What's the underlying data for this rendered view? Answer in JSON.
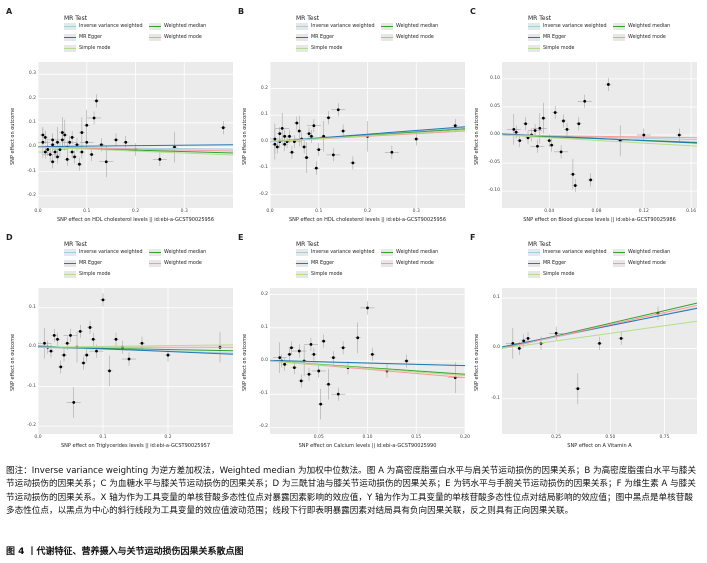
{
  "legend": {
    "title": "MR Test",
    "items": [
      {
        "label": "Inverse variance weighted",
        "color": "#a6cee3"
      },
      {
        "label": "Weighted median",
        "color": "#33a02c"
      },
      {
        "label": "MR Egger",
        "color": "#1f78b4"
      },
      {
        "label": "Weighted mode",
        "color": "#fb9a99"
      },
      {
        "label": "Simple mode",
        "color": "#b2df8a"
      }
    ]
  },
  "ylabel": "SNP effect on outcome",
  "chart_data": [
    {
      "type": "scatter",
      "panel": "A",
      "xlabel": "SNP effect on HDL cholesterol levels || id:ebi-a-GCST90025956",
      "xlim": [
        0,
        0.4
      ],
      "ylim": [
        -0.25,
        0.35
      ],
      "xticks": [
        {
          "v": 0.0,
          "t": "0.0"
        },
        {
          "v": 0.1,
          "t": "0.1"
        },
        {
          "v": 0.2,
          "t": "0.2"
        },
        {
          "v": 0.3,
          "t": "0.3"
        }
      ],
      "yticks": [
        {
          "v": -0.2,
          "t": "-0.2"
        },
        {
          "v": -0.1,
          "t": "-0.1"
        },
        {
          "v": 0.0,
          "t": "0.0"
        },
        {
          "v": 0.1,
          "t": "0.1"
        },
        {
          "v": 0.2,
          "t": "0.2"
        },
        {
          "v": 0.3,
          "t": "0.3"
        }
      ],
      "points": [
        [
          0.01,
          0.02
        ],
        [
          0.02,
          -0.01
        ],
        [
          0.015,
          0.04
        ],
        [
          0.03,
          0.01
        ],
        [
          0.025,
          -0.03
        ],
        [
          0.04,
          0.02
        ],
        [
          0.035,
          -0.02
        ],
        [
          0.05,
          0.03
        ],
        [
          0.045,
          -0.01
        ],
        [
          0.06,
          0.0
        ],
        [
          0.055,
          0.05
        ],
        [
          0.07,
          -0.02
        ],
        [
          0.065,
          0.02
        ],
        [
          0.08,
          0.01
        ],
        [
          0.075,
          -0.04
        ],
        [
          0.09,
          0.06
        ],
        [
          0.1,
          0.02
        ],
        [
          0.11,
          -0.03
        ],
        [
          0.12,
          0.19
        ],
        [
          0.13,
          0.01
        ],
        [
          0.14,
          -0.06
        ],
        [
          0.16,
          0.03
        ],
        [
          0.18,
          0.02
        ],
        [
          0.2,
          -0.01
        ],
        [
          0.25,
          -0.05
        ],
        [
          0.28,
          0.0
        ],
        [
          0.38,
          0.08
        ],
        [
          0.02,
          0.0
        ],
        [
          0.03,
          0.03
        ],
        [
          0.04,
          -0.04
        ],
        [
          0.05,
          0.06
        ],
        [
          0.06,
          -0.05
        ],
        [
          0.015,
          -0.02
        ],
        [
          0.07,
          0.04
        ],
        [
          0.085,
          -0.07
        ],
        [
          0.1,
          0.09
        ],
        [
          0.115,
          0.12
        ],
        [
          0.09,
          -0.02
        ],
        [
          0.03,
          -0.06
        ],
        [
          0.01,
          0.05
        ]
      ],
      "lines": [
        {
          "name": "Inverse variance weighted",
          "slope": -0.02,
          "intercept": 0.0
        },
        {
          "name": "Weighted median",
          "slope": -0.06,
          "intercept": 0.0
        },
        {
          "name": "MR Egger",
          "slope": 0.02,
          "intercept": 0.002
        },
        {
          "name": "Weighted mode",
          "slope": -0.04,
          "intercept": 0.0
        },
        {
          "name": "Simple mode",
          "slope": -0.08,
          "intercept": 0.0
        }
      ]
    },
    {
      "type": "scatter",
      "panel": "B",
      "xlabel": "SNP effect on HDL cholesterol levels || id:ebi-a-GCST90025956",
      "xlim": [
        0,
        0.4
      ],
      "ylim": [
        -0.25,
        0.3
      ],
      "xticks": [
        {
          "v": 0.0,
          "t": "0.0"
        },
        {
          "v": 0.1,
          "t": "0.1"
        },
        {
          "v": 0.2,
          "t": "0.2"
        },
        {
          "v": 0.3,
          "t": "0.3"
        }
      ],
      "yticks": [
        {
          "v": -0.2,
          "t": "-0.2"
        },
        {
          "v": -0.1,
          "t": "-0.1"
        },
        {
          "v": 0.0,
          "t": "0.0"
        },
        {
          "v": 0.1,
          "t": "0.1"
        },
        {
          "v": 0.2,
          "t": "0.2"
        }
      ],
      "points": [
        [
          0.01,
          0.01
        ],
        [
          0.02,
          0.03
        ],
        [
          0.03,
          -0.01
        ],
        [
          0.04,
          0.02
        ],
        [
          0.05,
          0.0
        ],
        [
          0.06,
          0.04
        ],
        [
          0.07,
          -0.02
        ],
        [
          0.08,
          0.03
        ],
        [
          0.09,
          0.06
        ],
        [
          0.1,
          -0.03
        ],
        [
          0.11,
          0.02
        ],
        [
          0.12,
          0.09
        ],
        [
          0.13,
          -0.05
        ],
        [
          0.15,
          0.04
        ],
        [
          0.17,
          -0.08
        ],
        [
          0.2,
          0.02
        ],
        [
          0.25,
          -0.04
        ],
        [
          0.3,
          0.01
        ],
        [
          0.38,
          0.06
        ],
        [
          0.015,
          -0.02
        ],
        [
          0.025,
          0.05
        ],
        [
          0.035,
          0.0
        ],
        [
          0.045,
          -0.04
        ],
        [
          0.055,
          0.07
        ],
        [
          0.065,
          0.01
        ],
        [
          0.075,
          -0.06
        ],
        [
          0.085,
          0.02
        ],
        [
          0.095,
          -0.1
        ],
        [
          0.14,
          0.12
        ],
        [
          0.02,
          0.0
        ],
        [
          0.01,
          -0.01
        ],
        [
          0.03,
          0.02
        ]
      ],
      "lines": [
        {
          "name": "Inverse variance weighted",
          "slope": 0.13,
          "intercept": 0.0
        },
        {
          "name": "Weighted median",
          "slope": 0.12,
          "intercept": 0.0
        },
        {
          "name": "MR Egger",
          "slope": 0.14,
          "intercept": 0.0
        },
        {
          "name": "Weighted mode",
          "slope": 0.1,
          "intercept": 0.0
        },
        {
          "name": "Simple mode",
          "slope": 0.11,
          "intercept": 0.0
        }
      ]
    },
    {
      "type": "scatter",
      "panel": "C",
      "xlabel": "SNP effect on Blood glucose levels || id:ebi-a-GCST90025986",
      "xlim": [
        0,
        0.165
      ],
      "ylim": [
        -0.13,
        0.13
      ],
      "xticks": [
        {
          "v": 0.04,
          "t": "0.04"
        },
        {
          "v": 0.08,
          "t": "0.08"
        },
        {
          "v": 0.12,
          "t": "0.12"
        },
        {
          "v": 0.16,
          "t": "0.16"
        }
      ],
      "yticks": [
        {
          "v": -0.1,
          "t": "-0.10"
        },
        {
          "v": -0.05,
          "t": "-0.05"
        },
        {
          "v": 0.0,
          "t": "0.00"
        },
        {
          "v": 0.05,
          "t": "0.05"
        },
        {
          "v": 0.1,
          "t": "0.10"
        }
      ],
      "points": [
        [
          0.01,
          0.01
        ],
        [
          0.015,
          -0.01
        ],
        [
          0.02,
          0.02
        ],
        [
          0.025,
          0.0
        ],
        [
          0.03,
          -0.02
        ],
        [
          0.035,
          0.03
        ],
        [
          0.04,
          -0.01
        ],
        [
          0.045,
          0.04
        ],
        [
          0.05,
          -0.03
        ],
        [
          0.055,
          0.01
        ],
        [
          0.06,
          -0.07
        ],
        [
          0.065,
          0.02
        ],
        [
          0.07,
          0.06
        ],
        [
          0.075,
          -0.08
        ],
        [
          0.09,
          0.09
        ],
        [
          0.1,
          -0.01
        ],
        [
          0.12,
          0.0
        ],
        [
          0.15,
          0.0
        ],
        [
          0.012,
          0.005
        ],
        [
          0.022,
          -0.005
        ],
        [
          0.032,
          0.012
        ],
        [
          0.042,
          -0.018
        ],
        [
          0.052,
          0.025
        ],
        [
          0.062,
          -0.09
        ],
        [
          0.028,
          0.008
        ]
      ],
      "lines": [
        {
          "name": "Inverse variance weighted",
          "slope": -0.05,
          "intercept": 0.0
        },
        {
          "name": "Weighted median",
          "slope": -0.08,
          "intercept": 0.0
        },
        {
          "name": "MR Egger",
          "slope": -0.1,
          "intercept": 0.002
        },
        {
          "name": "Weighted mode",
          "slope": -0.03,
          "intercept": 0.0
        },
        {
          "name": "Simple mode",
          "slope": -0.12,
          "intercept": 0.0
        }
      ]
    },
    {
      "type": "scatter",
      "panel": "D",
      "xlabel": "SNP effect on Triglycerides levels || id:ebi-a-GCST90025957",
      "xlim": [
        0,
        0.3
      ],
      "ylim": [
        -0.22,
        0.15
      ],
      "xticks": [
        {
          "v": 0.0,
          "t": "0.0"
        },
        {
          "v": 0.1,
          "t": "0.1"
        },
        {
          "v": 0.2,
          "t": "0.2"
        }
      ],
      "yticks": [
        {
          "v": -0.2,
          "t": "-0.2"
        },
        {
          "v": -0.1,
          "t": "-0.1"
        },
        {
          "v": 0.0,
          "t": "0.0"
        },
        {
          "v": 0.1,
          "t": "0.1"
        }
      ],
      "points": [
        [
          0.01,
          0.01
        ],
        [
          0.02,
          -0.01
        ],
        [
          0.03,
          0.02
        ],
        [
          0.04,
          -0.02
        ],
        [
          0.05,
          0.03
        ],
        [
          0.06,
          0.0
        ],
        [
          0.07,
          -0.04
        ],
        [
          0.08,
          0.05
        ],
        [
          0.09,
          -0.01
        ],
        [
          0.1,
          0.12
        ],
        [
          0.11,
          -0.06
        ],
        [
          0.12,
          0.02
        ],
        [
          0.14,
          -0.03
        ],
        [
          0.16,
          0.01
        ],
        [
          0.2,
          -0.02
        ],
        [
          0.28,
          0.0
        ],
        [
          0.015,
          0.0
        ],
        [
          0.025,
          0.03
        ],
        [
          0.035,
          -0.05
        ],
        [
          0.045,
          0.01
        ],
        [
          0.055,
          -0.14
        ],
        [
          0.065,
          0.04
        ],
        [
          0.075,
          -0.02
        ],
        [
          0.085,
          0.02
        ],
        [
          0.13,
          0.0
        ]
      ],
      "lines": [
        {
          "name": "Inverse variance weighted",
          "slope": -0.05,
          "intercept": 0.0
        },
        {
          "name": "Weighted median",
          "slope": -0.03,
          "intercept": 0.0
        },
        {
          "name": "MR Egger",
          "slope": -0.07,
          "intercept": 0.003
        },
        {
          "name": "Weighted mode",
          "slope": 0.0,
          "intercept": 0.0
        },
        {
          "name": "Simple mode",
          "slope": 0.02,
          "intercept": 0.0
        }
      ]
    },
    {
      "type": "scatter",
      "panel": "E",
      "xlabel": "SNP effect on Calcium levels || id:ebi-a-GCST90025990",
      "xlim": [
        0,
        0.2
      ],
      "ylim": [
        -0.22,
        0.22
      ],
      "xticks": [
        {
          "v": 0.05,
          "t": "0.05"
        },
        {
          "v": 0.1,
          "t": "0.10"
        },
        {
          "v": 0.15,
          "t": "0.15"
        },
        {
          "v": 0.2,
          "t": "0.20"
        }
      ],
      "yticks": [
        {
          "v": -0.2,
          "t": "-0.2"
        },
        {
          "v": -0.1,
          "t": "-0.1"
        },
        {
          "v": 0.0,
          "t": "0.0"
        },
        {
          "v": 0.1,
          "t": "0.1"
        },
        {
          "v": 0.2,
          "t": "0.2"
        }
      ],
      "points": [
        [
          0.01,
          0.01
        ],
        [
          0.015,
          -0.01
        ],
        [
          0.02,
          0.02
        ],
        [
          0.025,
          -0.02
        ],
        [
          0.03,
          0.03
        ],
        [
          0.035,
          0.0
        ],
        [
          0.04,
          -0.04
        ],
        [
          0.045,
          0.02
        ],
        [
          0.05,
          -0.03
        ],
        [
          0.055,
          0.06
        ],
        [
          0.06,
          -0.07
        ],
        [
          0.065,
          0.01
        ],
        [
          0.07,
          -0.1
        ],
        [
          0.075,
          0.04
        ],
        [
          0.08,
          -0.02
        ],
        [
          0.09,
          0.07
        ],
        [
          0.1,
          0.16
        ],
        [
          0.105,
          0.02
        ],
        [
          0.12,
          -0.03
        ],
        [
          0.14,
          0.0
        ],
        [
          0.19,
          -0.05
        ],
        [
          0.012,
          0.0
        ],
        [
          0.022,
          0.04
        ],
        [
          0.032,
          -0.06
        ],
        [
          0.042,
          0.05
        ],
        [
          0.052,
          -0.13
        ]
      ],
      "lines": [
        {
          "name": "Inverse variance weighted",
          "slope": -0.07,
          "intercept": 0.0
        },
        {
          "name": "Weighted median",
          "slope": -0.2,
          "intercept": 0.0
        },
        {
          "name": "MR Egger",
          "slope": -0.08,
          "intercept": 0.002
        },
        {
          "name": "Weighted mode",
          "slope": -0.25,
          "intercept": 0.0
        },
        {
          "name": "Simple mode",
          "slope": -0.22,
          "intercept": 0.0
        }
      ]
    },
    {
      "type": "scatter",
      "panel": "F",
      "xlabel": "SNP effect on A Vitamin A",
      "xlim": [
        0,
        0.9
      ],
      "ylim": [
        -0.17,
        0.12
      ],
      "xticks": [
        {
          "v": 0.25,
          "t": "0.25"
        },
        {
          "v": 0.5,
          "t": "0.50"
        },
        {
          "v": 0.75,
          "t": "0.75"
        }
      ],
      "yticks": [
        {
          "v": -0.1,
          "t": "-0.1"
        },
        {
          "v": 0.0,
          "t": "0.0"
        },
        {
          "v": 0.1,
          "t": "0.1"
        }
      ],
      "points": [
        [
          0.05,
          0.01
        ],
        [
          0.08,
          0.0
        ],
        [
          0.12,
          0.02
        ],
        [
          0.18,
          0.01
        ],
        [
          0.25,
          0.03
        ],
        [
          0.35,
          -0.08
        ],
        [
          0.45,
          0.01
        ],
        [
          0.55,
          0.02
        ],
        [
          0.72,
          0.07
        ],
        [
          0.1,
          0.015
        ]
      ],
      "lines": [
        {
          "name": "Inverse variance weighted",
          "slope": 0.09,
          "intercept": 0.0
        },
        {
          "name": "Weighted median",
          "slope": 0.1,
          "intercept": 0.0
        },
        {
          "name": "MR Egger",
          "slope": 0.085,
          "intercept": 0.003
        },
        {
          "name": "Weighted mode",
          "slope": 0.095,
          "intercept": 0.0
        },
        {
          "name": "Simple mode",
          "slope": 0.06,
          "intercept": 0.0
        }
      ]
    }
  ],
  "caption": {
    "text": "图注：Inverse variance weighting 为逆方差加权法，Weighted median 为加权中位数法。图 A 为高密度脂蛋白水平与肩关节运动损伤的因果关系；B 为高密度脂蛋白水平与膝关节运动损伤的因果关系；C 为血糖水平与膝关节运动损伤的因果关系；D 为三酰甘油与膝关节运动损伤的因果关系；E 为钙水平与手腕关节运动损伤的因果关系；F 为维生素 A 与膝关节运动损伤的因果关系。X 轴为作为工具变量的单核苷酸多态性位点对暴露因素影响的效应值，Y 轴为作为工具变量的单核苷酸多态性位点对结局影响的效应值；图中黑点是单核苷酸多态性位点，以黑点为中心的斜行线段为工具变量的效应值波动范围；线段下行即表明暴露因素对结局具有负向因果关联，反之则具有正向因果关联。",
    "figure_title": "图 4 丨代谢特征、营养摄入与关节运动损伤因果关系散点图"
  }
}
